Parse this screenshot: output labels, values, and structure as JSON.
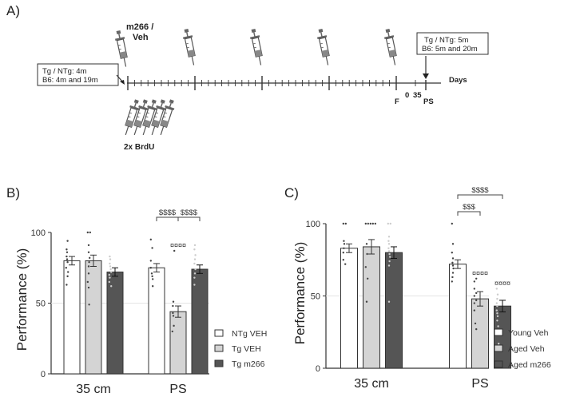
{
  "panelA": {
    "label": "A)",
    "treatment_label_line1": "m266 /",
    "treatment_label_line2": "Veh",
    "start_box_line1": "Tg / NTg: 4m",
    "start_box_line2": "B6: 4m and 19m",
    "end_box_line1": "Tg / NTg: 5m",
    "end_box_line2": "B6: 5m and 20m",
    "axis_label": "Days",
    "tick_F": "F",
    "tick_0": "0",
    "tick_35": "35",
    "tick_PS": "PS",
    "brdu_label": "2x BrdU",
    "syringe_icon": "syringe-icon"
  },
  "chart_data": [
    {
      "panel_label": "B)",
      "type": "bar",
      "ylabel": "Performance (%)",
      "ylim": [
        0,
        100
      ],
      "yticks": [
        "0",
        "50",
        "100"
      ],
      "chance_line": 50,
      "categories": [
        "35 cm",
        "PS"
      ],
      "series": [
        {
          "name": "NTg VEH",
          "color": "#ffffff",
          "values": [
            80,
            75
          ],
          "sem": [
            3,
            3
          ]
        },
        {
          "name": "Tg VEH",
          "color": "#d4d4d4",
          "values": [
            80,
            44
          ],
          "sem": [
            4,
            4
          ]
        },
        {
          "name": "Tg m266",
          "color": "#555555",
          "values": [
            72,
            74
          ],
          "sem": [
            3,
            3
          ]
        }
      ],
      "points": [
        [
          [
            94,
            88,
            86,
            83,
            81,
            79,
            75,
            72,
            69,
            63
          ],
          [
            95,
            89,
            80,
            75,
            71,
            69,
            67,
            62
          ]
        ],
        [
          [
            100,
            100,
            91,
            86,
            82,
            79,
            76,
            71,
            65,
            61,
            49
          ],
          [
            87,
            51,
            48,
            43,
            41,
            34,
            30
          ]
        ],
        [
          [
            83,
            81,
            78,
            76,
            74,
            72,
            70,
            68,
            65,
            62
          ],
          [
            91,
            88,
            84,
            81,
            78,
            74,
            71,
            68,
            63
          ]
        ]
      ],
      "significance": [
        {
          "label": "$$$$",
          "from": "NTg VEH",
          "to": "Tg VEH",
          "category": "PS"
        },
        {
          "label": "$$$$",
          "from": "Tg VEH",
          "to": "Tg m266",
          "category": "PS"
        }
      ],
      "bar_markers": [
        {
          "label": "¤¤¤¤",
          "series": "Tg VEH",
          "category": "PS"
        }
      ],
      "legend_position": "right"
    },
    {
      "panel_label": "C)",
      "type": "bar",
      "ylabel": "Performance (%)",
      "ylim": [
        0,
        100
      ],
      "yticks": [
        "0",
        "50",
        "100"
      ],
      "chance_line": 50,
      "categories": [
        "35 cm",
        "PS"
      ],
      "series": [
        {
          "name": "Young Veh",
          "color": "#ffffff",
          "values": [
            83,
            72
          ],
          "sem": [
            3,
            3
          ]
        },
        {
          "name": "Aged Veh",
          "color": "#d4d4d4",
          "values": [
            84,
            48
          ],
          "sem": [
            5,
            5
          ]
        },
        {
          "name": "Aged m266",
          "color": "#555555",
          "values": [
            80,
            43
          ],
          "sem": [
            4,
            4
          ]
        }
      ],
      "points": [
        [
          [
            100,
            100,
            88,
            86,
            83,
            80,
            75,
            72
          ],
          [
            100,
            86,
            80,
            76,
            73,
            71,
            69,
            66,
            63,
            60
          ]
        ],
        [
          [
            100,
            100,
            100,
            100,
            100,
            86,
            79,
            70,
            62,
            46
          ],
          [
            62,
            60,
            55,
            52,
            50,
            47,
            45,
            40,
            31,
            27
          ]
        ],
        [
          [
            100,
            100,
            91,
            88,
            86,
            83,
            81,
            79,
            77,
            74,
            71,
            46
          ],
          [
            55,
            51,
            48,
            45,
            43,
            40,
            38,
            36,
            33,
            29,
            17
          ]
        ]
      ],
      "significance": [
        {
          "label": "$$$",
          "from": "Young Veh",
          "to": "Aged Veh",
          "category": "PS"
        },
        {
          "label": "$$$$",
          "from": "Young Veh",
          "to": "Aged m266",
          "category": "PS"
        }
      ],
      "bar_markers": [
        {
          "label": "¤¤¤¤",
          "series": "Aged Veh",
          "category": "PS"
        },
        {
          "label": "¤¤¤¤",
          "series": "Aged m266",
          "category": "PS"
        }
      ],
      "legend_position": "right"
    }
  ]
}
